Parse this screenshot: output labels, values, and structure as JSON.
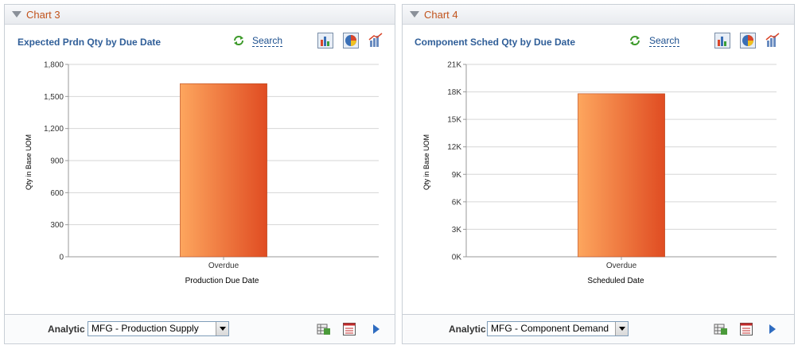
{
  "panels": [
    {
      "header_title": "Chart 3",
      "chart_title": "Expected Prdn Qty by Due Date",
      "search_label": "Search",
      "ylabel": "Qty in Base UOM",
      "xlabel": "Production Due Date",
      "analytic_label": "Analytic",
      "analytic_value": "MFG - Production Supply"
    },
    {
      "header_title": "Chart 4",
      "chart_title": "Component Sched Qty by Due Date",
      "search_label": "Search",
      "ylabel": "Qty in Base UOM",
      "xlabel": "Scheduled Date",
      "analytic_label": "Analytic",
      "analytic_value": "MFG - Component Demand"
    }
  ],
  "colors": {
    "bar_light": "#fda65e",
    "bar_dark": "#e04c22",
    "header_text": "#c1531c",
    "title_text": "#2f5e98"
  },
  "chart_data": [
    {
      "type": "bar",
      "categories": [
        "Overdue"
      ],
      "values": [
        1620
      ],
      "ylim": [
        0,
        1800
      ],
      "yticks": [
        "0",
        "300",
        "600",
        "900",
        "1,200",
        "1,500",
        "1,800"
      ],
      "ytick_values": [
        0,
        300,
        600,
        900,
        1200,
        1500,
        1800
      ],
      "xlabel": "Production Due Date",
      "ylabel": "Qty in Base UOM",
      "grid": true
    },
    {
      "type": "bar",
      "categories": [
        "Overdue"
      ],
      "values": [
        17800
      ],
      "ylim": [
        0,
        21000
      ],
      "yticks": [
        "0K",
        "3K",
        "6K",
        "9K",
        "12K",
        "15K",
        "18K",
        "21K"
      ],
      "ytick_values": [
        0,
        3000,
        6000,
        9000,
        12000,
        15000,
        18000,
        21000
      ],
      "xlabel": "Scheduled Date",
      "ylabel": "Qty in Base UOM",
      "grid": true
    }
  ]
}
